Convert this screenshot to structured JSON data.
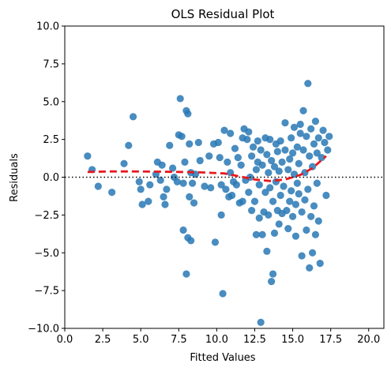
{
  "chart_data": {
    "type": "scatter",
    "title": "OLS Residual Plot",
    "xlabel": "Fitted Values",
    "ylabel": "Residuals",
    "xlim": [
      0,
      21
    ],
    "ylim": [
      -10,
      10
    ],
    "xticks": [
      0,
      2.5,
      5,
      7.5,
      10,
      12.5,
      15,
      17.5,
      20
    ],
    "yticks": [
      -10,
      -7.5,
      -5,
      -2.5,
      0,
      2.5,
      5,
      7.5,
      10
    ],
    "xtick_labels": [
      "0.0",
      "2.5",
      "5.0",
      "7.5",
      "10.0",
      "12.5",
      "15.0",
      "17.5",
      "20.0"
    ],
    "ytick_labels": [
      "−10.0",
      "−7.5",
      "−5.0",
      "−2.5",
      "0.0",
      "2.5",
      "5.0",
      "7.5",
      "10.0"
    ],
    "grid": false,
    "colors": {
      "points": "#2878b5",
      "smooth": "#e8191f",
      "zero": "#000000"
    },
    "points": [
      [
        1.5,
        1.4
      ],
      [
        1.8,
        0.5
      ],
      [
        2.2,
        -0.6
      ],
      [
        3.1,
        -1.0
      ],
      [
        3.9,
        0.9
      ],
      [
        4.2,
        2.1
      ],
      [
        4.5,
        4.0
      ],
      [
        4.9,
        -0.3
      ],
      [
        5.0,
        -0.8
      ],
      [
        5.1,
        -1.8
      ],
      [
        5.5,
        -1.6
      ],
      [
        5.6,
        -0.5
      ],
      [
        6.0,
        0.2
      ],
      [
        6.1,
        1.0
      ],
      [
        6.3,
        -0.2
      ],
      [
        6.4,
        0.8
      ],
      [
        6.5,
        -1.3
      ],
      [
        6.6,
        -1.8
      ],
      [
        6.7,
        -0.8
      ],
      [
        6.9,
        2.1
      ],
      [
        7.1,
        0.6
      ],
      [
        7.2,
        0.0
      ],
      [
        7.4,
        -0.3
      ],
      [
        7.5,
        2.8
      ],
      [
        7.6,
        5.2
      ],
      [
        7.7,
        2.7
      ],
      [
        7.8,
        -0.4
      ],
      [
        7.8,
        -3.5
      ],
      [
        7.9,
        1.0
      ],
      [
        8.0,
        4.4
      ],
      [
        8.0,
        -6.4
      ],
      [
        8.1,
        4.2
      ],
      [
        8.1,
        -4.0
      ],
      [
        8.2,
        2.2
      ],
      [
        8.2,
        -1.3
      ],
      [
        8.3,
        0.3
      ],
      [
        8.3,
        -4.2
      ],
      [
        8.4,
        -0.4
      ],
      [
        8.5,
        -1.7
      ],
      [
        8.6,
        0.2
      ],
      [
        8.8,
        2.3
      ],
      [
        8.9,
        1.1
      ],
      [
        9.2,
        -0.6
      ],
      [
        9.5,
        1.4
      ],
      [
        9.6,
        -0.7
      ],
      [
        9.8,
        2.2
      ],
      [
        9.9,
        -4.3
      ],
      [
        10.1,
        2.3
      ],
      [
        10.2,
        1.3
      ],
      [
        10.3,
        -0.5
      ],
      [
        10.3,
        -2.5
      ],
      [
        10.4,
        -7.7
      ],
      [
        10.5,
        3.1
      ],
      [
        10.6,
        -0.8
      ],
      [
        10.7,
        1.0
      ],
      [
        10.8,
        -1.3
      ],
      [
        10.9,
        2.9
      ],
      [
        10.9,
        0.3
      ],
      [
        11.0,
        -1.2
      ],
      [
        11.1,
        -0.3
      ],
      [
        11.2,
        1.9
      ],
      [
        11.3,
        -0.5
      ],
      [
        11.4,
        1.3
      ],
      [
        11.5,
        -1.7
      ],
      [
        11.6,
        0.8
      ],
      [
        11.7,
        -1.6
      ],
      [
        11.7,
        2.6
      ],
      [
        11.8,
        3.2
      ],
      [
        11.9,
        -0.2
      ],
      [
        12.0,
        2.5
      ],
      [
        12.1,
        -1.0
      ],
      [
        12.1,
        3.0
      ],
      [
        12.2,
        0.0
      ],
      [
        12.3,
        -2.2
      ],
      [
        12.3,
        1.4
      ],
      [
        12.4,
        2.0
      ],
      [
        12.5,
        -1.6
      ],
      [
        12.6,
        0.5
      ],
      [
        12.6,
        -3.8
      ],
      [
        12.7,
        2.4
      ],
      [
        12.7,
        1.0
      ],
      [
        12.8,
        -0.5
      ],
      [
        12.8,
        -2.7
      ],
      [
        12.9,
        1.8
      ],
      [
        12.9,
        -9.6
      ],
      [
        13.0,
        0.8
      ],
      [
        13.0,
        -3.8
      ],
      [
        13.1,
        -2.3
      ],
      [
        13.2,
        2.6
      ],
      [
        13.2,
        -1.0
      ],
      [
        13.3,
        -4.9
      ],
      [
        13.3,
        1.5
      ],
      [
        13.4,
        0.3
      ],
      [
        13.4,
        -2.5
      ],
      [
        13.5,
        2.5
      ],
      [
        13.5,
        -0.7
      ],
      [
        13.6,
        -6.9
      ],
      [
        13.6,
        1.1
      ],
      [
        13.7,
        -6.4
      ],
      [
        13.7,
        -1.6
      ],
      [
        13.8,
        -3.7
      ],
      [
        13.8,
        0.7
      ],
      [
        13.9,
        2.2
      ],
      [
        13.9,
        -0.3
      ],
      [
        14.0,
        1.7
      ],
      [
        14.0,
        -2.2
      ],
      [
        14.1,
        -3.1
      ],
      [
        14.1,
        0.4
      ],
      [
        14.2,
        2.4
      ],
      [
        14.2,
        -1.2
      ],
      [
        14.3,
        1.0
      ],
      [
        14.3,
        -2.4
      ],
      [
        14.4,
        -0.6
      ],
      [
        14.5,
        1.8
      ],
      [
        14.5,
        3.6
      ],
      [
        14.6,
        -2.2
      ],
      [
        14.7,
        0.5
      ],
      [
        14.7,
        -3.4
      ],
      [
        14.8,
        1.2
      ],
      [
        14.8,
        -1.6
      ],
      [
        14.9,
        2.6
      ],
      [
        14.9,
        -0.9
      ],
      [
        15.0,
        1.6
      ],
      [
        15.0,
        -2.6
      ],
      [
        15.1,
        0.2
      ],
      [
        15.1,
        3.3
      ],
      [
        15.2,
        -1.8
      ],
      [
        15.2,
        -3.9
      ],
      [
        15.3,
        2.0
      ],
      [
        15.3,
        -0.4
      ],
      [
        15.4,
        0.9
      ],
      [
        15.4,
        -1.1
      ],
      [
        15.5,
        2.9
      ],
      [
        15.5,
        3.5
      ],
      [
        15.6,
        -2.3
      ],
      [
        15.6,
        -5.2
      ],
      [
        15.7,
        1.8
      ],
      [
        15.7,
        4.4
      ],
      [
        15.8,
        0.3
      ],
      [
        15.8,
        -1.5
      ],
      [
        15.9,
        2.7
      ],
      [
        15.9,
        -3.5
      ],
      [
        16.0,
        6.2
      ],
      [
        16.0,
        -0.8
      ],
      [
        16.1,
        1.4
      ],
      [
        16.1,
        -6.0
      ],
      [
        16.2,
        -2.6
      ],
      [
        16.2,
        3.2
      ],
      [
        16.3,
        0.7
      ],
      [
        16.3,
        -5.0
      ],
      [
        16.4,
        2.2
      ],
      [
        16.4,
        -1.9
      ],
      [
        16.5,
        3.7
      ],
      [
        16.5,
        -3.8
      ],
      [
        16.6,
        1.6
      ],
      [
        16.6,
        -0.4
      ],
      [
        16.7,
        2.6
      ],
      [
        16.7,
        -2.9
      ],
      [
        16.8,
        -5.7
      ],
      [
        16.9,
        1.3
      ],
      [
        17.0,
        3.1
      ],
      [
        17.1,
        2.3
      ],
      [
        17.2,
        -1.2
      ],
      [
        17.3,
        1.8
      ],
      [
        17.4,
        2.7
      ]
    ],
    "smooth": [
      [
        1.5,
        0.35
      ],
      [
        3.0,
        0.38
      ],
      [
        4.5,
        0.38
      ],
      [
        6.0,
        0.37
      ],
      [
        7.5,
        0.35
      ],
      [
        9.0,
        0.32
      ],
      [
        10.5,
        0.25
      ],
      [
        11.5,
        0.05
      ],
      [
        12.5,
        -0.15
      ],
      [
        13.5,
        -0.25
      ],
      [
        14.5,
        -0.15
      ],
      [
        15.5,
        0.15
      ],
      [
        16.3,
        0.6
      ],
      [
        17.2,
        1.4
      ]
    ]
  }
}
